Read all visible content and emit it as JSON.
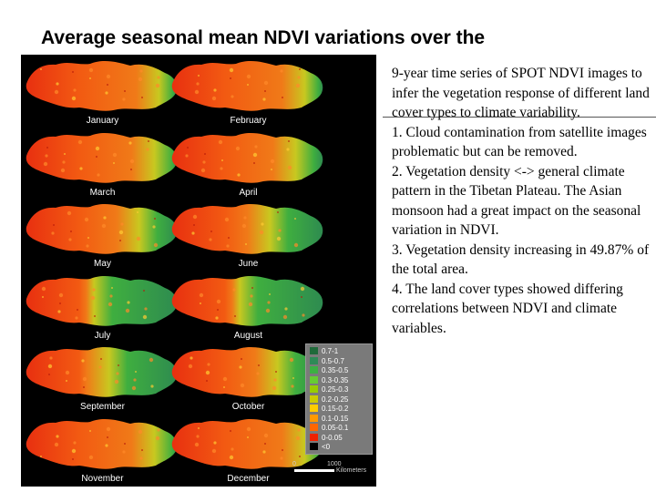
{
  "slide": {
    "title": "Average seasonal mean NDVI variations over the",
    "body_lines": [
      "9-year time series of SPOT NDVI images to infer the vegetation response of different land cover types to climate variability.",
      "1. Cloud contamination from satellite images problematic but can be removed.",
      "2. Vegetation density <-> general climate pattern in the Tibetan Plateau. The Asian monsoon had a great impact on the seasonal variation in NDVI.",
      "3. Vegetation density increasing in 49.87% of the total area.",
      "4. The land cover types showed differing correlations between NDVI and climate variables."
    ]
  },
  "figure": {
    "months": [
      "January",
      "February",
      "March",
      "April",
      "May",
      "June",
      "July",
      "August",
      "September",
      "October",
      "November",
      "December"
    ],
    "green_extent": [
      0.12,
      0.12,
      0.15,
      0.18,
      0.25,
      0.35,
      0.55,
      0.55,
      0.45,
      0.3,
      0.15,
      0.12
    ],
    "legend": [
      {
        "label": "0.7-1",
        "color": "#1f6a3a"
      },
      {
        "label": "0.5-0.7",
        "color": "#2e8b57"
      },
      {
        "label": "0.35-0.5",
        "color": "#3cb043"
      },
      {
        "label": "0.3-0.35",
        "color": "#66cc33"
      },
      {
        "label": "0.25-0.3",
        "color": "#99cc00"
      },
      {
        "label": "0.2-0.25",
        "color": "#cccc00"
      },
      {
        "label": "0.15-0.2",
        "color": "#ffcc00"
      },
      {
        "label": "0.1-0.15",
        "color": "#ff9900"
      },
      {
        "label": "0.05-0.1",
        "color": "#ff6600"
      },
      {
        "label": "0-0.05",
        "color": "#ee2200"
      },
      {
        "label": "<0",
        "color": "#000000"
      }
    ],
    "scale": {
      "start": "0",
      "end": "1000",
      "unit": "Kilometers"
    }
  }
}
